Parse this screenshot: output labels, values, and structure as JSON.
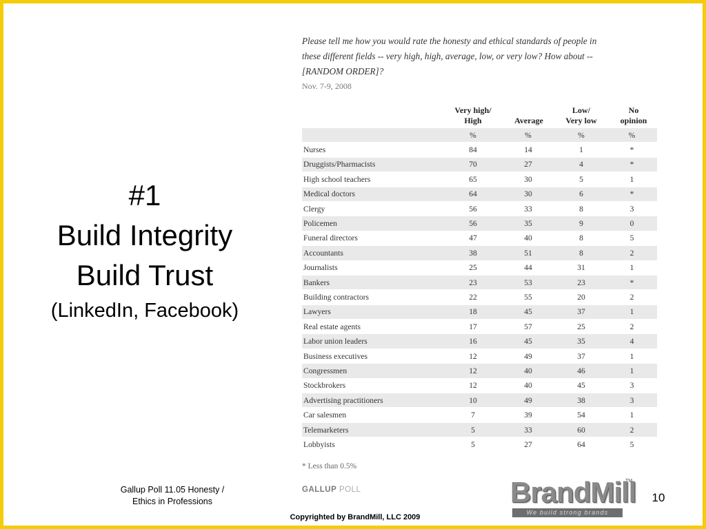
{
  "slide": {
    "title": [
      "#1",
      "Build Integrity",
      "Build Trust"
    ],
    "subtitle": "(LinkedIn, Facebook)",
    "source": [
      "Gallup Poll 11.05 Honesty /",
      "Ethics in Professions"
    ],
    "copyright": "Copyrighted by BrandMill, LLC 2009",
    "page_number": "10",
    "logo": {
      "word": "BrandMill",
      "tm": "TM",
      "tagline": "We build strong brands"
    }
  },
  "poll": {
    "question_lines": [
      "Please tell me how you would rate the honesty and ethical standards of people in",
      "these different fields -- very high, high, average, low, or very low? How about --",
      "[RANDOM ORDER]?"
    ],
    "date": "Nov. 7-9, 2008",
    "columns": [
      [
        "Very high/",
        "High"
      ],
      [
        "Average"
      ],
      [
        "Low/",
        "Very low"
      ],
      [
        "No",
        "opinion"
      ]
    ],
    "units": [
      "%",
      "%",
      "%",
      "%"
    ],
    "rows": [
      [
        "Nurses",
        "84",
        "14",
        "1",
        "*"
      ],
      [
        "Druggists/Pharmacists",
        "70",
        "27",
        "4",
        "*"
      ],
      [
        "High school teachers",
        "65",
        "30",
        "5",
        "1"
      ],
      [
        "Medical doctors",
        "64",
        "30",
        "6",
        "*"
      ],
      [
        "Clergy",
        "56",
        "33",
        "8",
        "3"
      ],
      [
        "Policemen",
        "56",
        "35",
        "9",
        "0"
      ],
      [
        "Funeral directors",
        "47",
        "40",
        "8",
        "5"
      ],
      [
        "Accountants",
        "38",
        "51",
        "8",
        "2"
      ],
      [
        "Journalists",
        "25",
        "44",
        "31",
        "1"
      ],
      [
        "Bankers",
        "23",
        "53",
        "23",
        "*"
      ],
      [
        "Building contractors",
        "22",
        "55",
        "20",
        "2"
      ],
      [
        "Lawyers",
        "18",
        "45",
        "37",
        "1"
      ],
      [
        "Real estate agents",
        "17",
        "57",
        "25",
        "2"
      ],
      [
        "Labor union leaders",
        "16",
        "45",
        "35",
        "4"
      ],
      [
        "Business executives",
        "12",
        "49",
        "37",
        "1"
      ],
      [
        "Congressmen",
        "12",
        "40",
        "46",
        "1"
      ],
      [
        "Stockbrokers",
        "12",
        "40",
        "45",
        "3"
      ],
      [
        "Advertising practitioners",
        "10",
        "49",
        "38",
        "3"
      ],
      [
        "Car salesmen",
        "7",
        "39",
        "54",
        "1"
      ],
      [
        "Telemarketers",
        "5",
        "33",
        "60",
        "2"
      ],
      [
        "Lobbyists",
        "5",
        "27",
        "64",
        "5"
      ]
    ],
    "footnote": "* Less than 0.5%",
    "brand": {
      "bold": "GALLUP",
      "light": "POLL"
    }
  }
}
